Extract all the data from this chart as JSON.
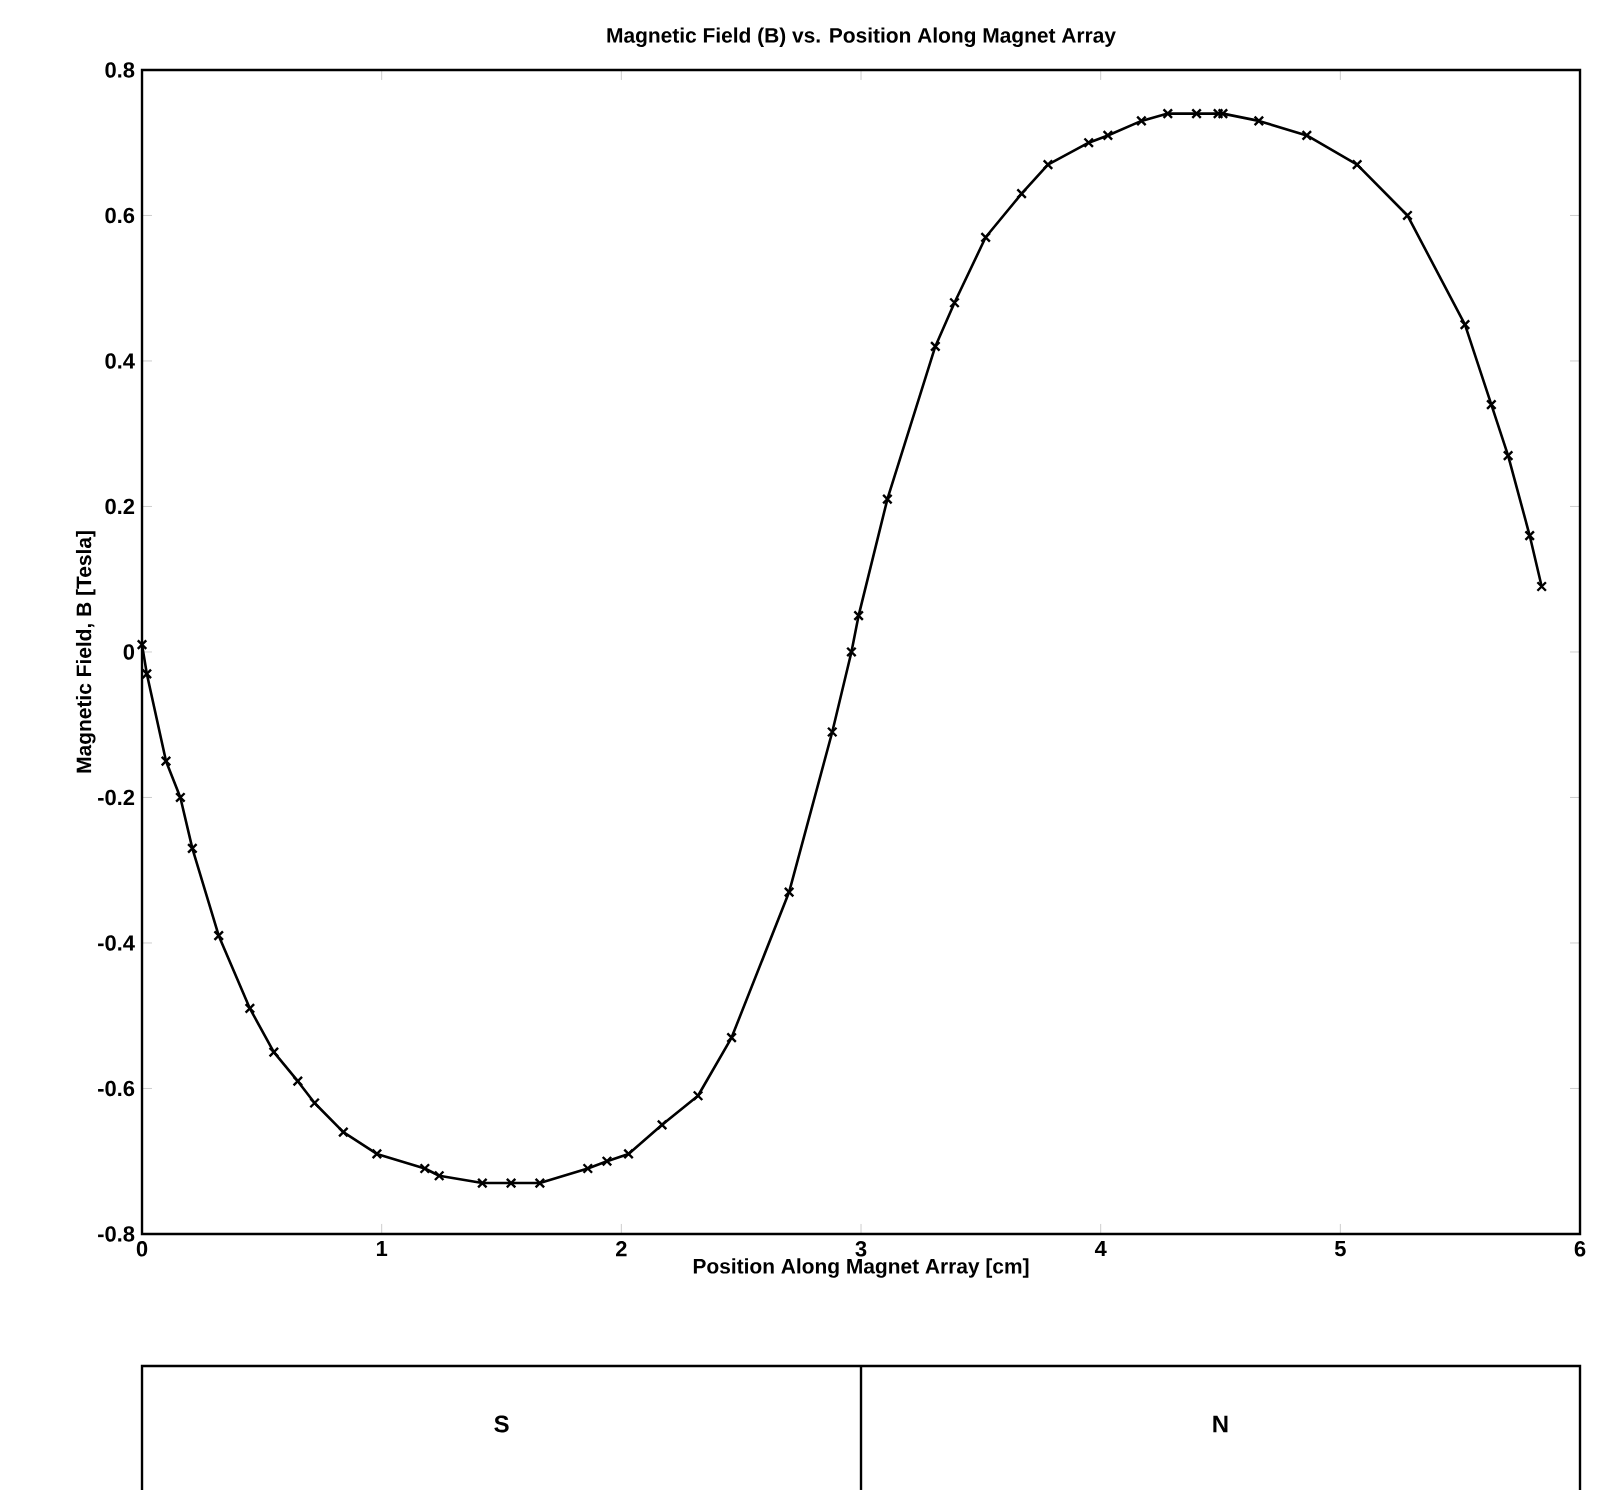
{
  "chart_data": {
    "type": "line",
    "title": "Magnetic Field (B) vs. Position Along Magnet Array",
    "xlabel": "Position Along Magnet Array [cm]",
    "ylabel": "Magnetic Field, B [Tesla]",
    "x": [
      0,
      0.02,
      0.1,
      0.16,
      0.21,
      0.32,
      0.45,
      0.55,
      0.65,
      0.72,
      0.84,
      0.98,
      1.18,
      1.24,
      1.42,
      1.54,
      1.66,
      1.86,
      1.94,
      2.03,
      2.17,
      2.32,
      2.46,
      2.7,
      2.88,
      2.96,
      2.99,
      3.11,
      3.31,
      3.39,
      3.52,
      3.67,
      3.78,
      3.95,
      4.03,
      4.17,
      4.28,
      4.4,
      4.49,
      4.51,
      4.66,
      4.86,
      5.07,
      5.28,
      5.52,
      5.63,
      5.7,
      5.79,
      5.84
    ],
    "values": [
      0.01,
      -0.03,
      -0.15,
      -0.2,
      -0.27,
      -0.39,
      -0.49,
      -0.55,
      -0.59,
      -0.62,
      -0.66,
      -0.69,
      -0.71,
      -0.72,
      -0.73,
      -0.73,
      -0.73,
      -0.71,
      -0.7,
      -0.69,
      -0.65,
      -0.61,
      -0.53,
      -0.33,
      -0.11,
      0.0,
      0.05,
      0.21,
      0.42,
      0.48,
      0.57,
      0.63,
      0.67,
      0.7,
      0.71,
      0.73,
      0.74,
      0.74,
      0.74,
      0.74,
      0.73,
      0.71,
      0.67,
      0.6,
      0.45,
      0.34,
      0.27,
      0.16,
      0.09
    ],
    "color": "#000000",
    "marker": "cross",
    "line_style": "solid",
    "xlim": [
      0,
      6
    ],
    "ylim": [
      -0.8,
      0.8
    ],
    "xticks": [
      0,
      1,
      2,
      3,
      4,
      5,
      6
    ],
    "yticks": [
      -0.8,
      -0.6,
      -0.4,
      -0.2,
      0,
      0.2,
      0.4,
      0.6,
      0.8
    ],
    "annotations": [
      "S",
      "N"
    ]
  }
}
